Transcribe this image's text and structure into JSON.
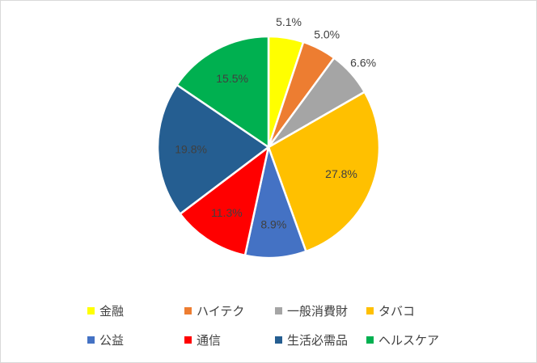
{
  "chart_data": {
    "type": "pie",
    "title": "",
    "start_angle_deg": 0,
    "direction": "clockwise",
    "slices": [
      {
        "label": "金融",
        "value": 5.1,
        "value_label": "5.1%",
        "color": "#ffff00"
      },
      {
        "label": "ハイテク",
        "value": 5.0,
        "value_label": "5.0%",
        "color": "#ed7d31"
      },
      {
        "label": "一般消費財",
        "value": 6.6,
        "value_label": "6.6%",
        "color": "#a5a5a5"
      },
      {
        "label": "タバコ",
        "value": 27.8,
        "value_label": "27.8%",
        "color": "#ffc000"
      },
      {
        "label": "公益",
        "value": 8.9,
        "value_label": "8.9%",
        "color": "#4472c4"
      },
      {
        "label": "通信",
        "value": 11.3,
        "value_label": "11.3%",
        "color": "#ff0000"
      },
      {
        "label": "生活必需品",
        "value": 19.8,
        "value_label": "19.8%",
        "color": "#255e91"
      },
      {
        "label": "ヘルスケア",
        "value": 15.5,
        "value_label": "15.5%",
        "color": "#00b050"
      }
    ],
    "legend_position": "bottom"
  }
}
